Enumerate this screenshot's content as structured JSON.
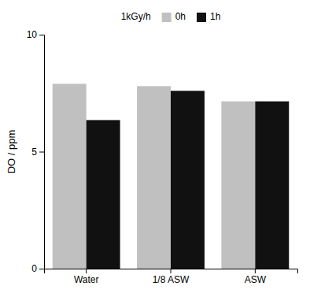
{
  "chart_data": {
    "type": "bar",
    "categories": [
      "Water",
      "1/8 ASW",
      "ASW"
    ],
    "series": [
      {
        "name": "0h",
        "color": "#c0c0c0",
        "values": [
          7.9,
          7.8,
          7.15
        ]
      },
      {
        "name": "1h",
        "color": "#111111",
        "values": [
          6.35,
          7.6,
          7.15
        ]
      }
    ],
    "ylabel": "DO / ppm",
    "legend_title": "1kGy/h",
    "legend": "top",
    "ylim": [
      0,
      10
    ],
    "yticks": [
      0,
      5,
      10
    ],
    "grid": false
  }
}
